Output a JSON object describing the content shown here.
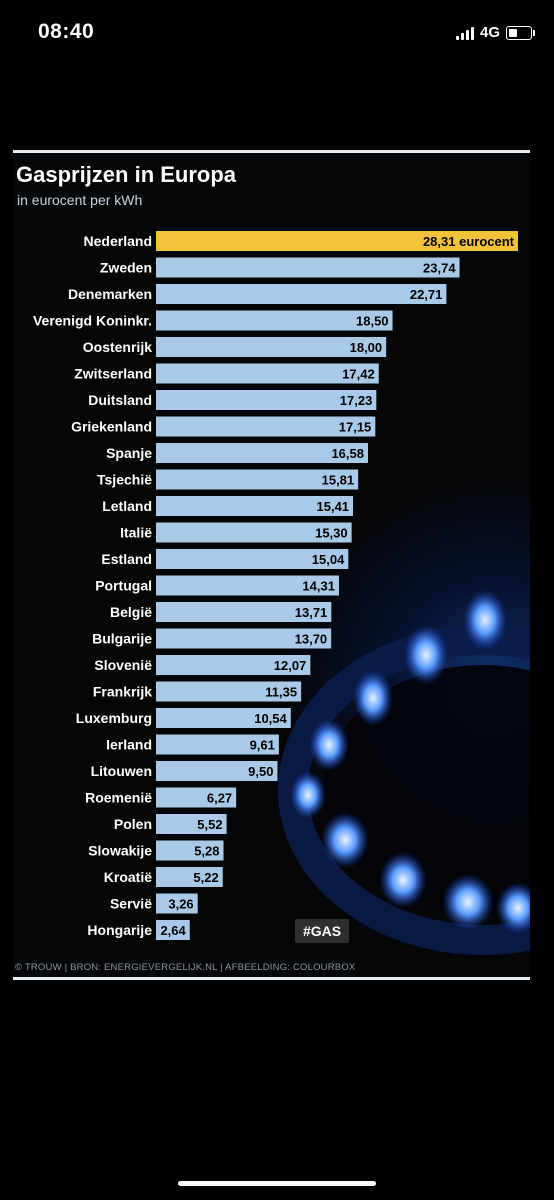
{
  "status_bar": {
    "time": "08:40",
    "network": "4G",
    "battery_level": 0.4
  },
  "infographic": {
    "hashtag": "#GAS",
    "footer": "© TROUW | BRON: ENERGIEVERGELIJK.NL | AFBEELDING: COLOURBOX"
  },
  "colors": {
    "highlight_bar": "#f2c33a",
    "bar": "#a9c9e8",
    "label_text": "#ffffff",
    "value_text": "#000000",
    "background": "#050608"
  },
  "chart_data": {
    "type": "bar",
    "orientation": "horizontal",
    "title": "Gasprijzen in Europa",
    "subtitle": "in eurocent per kWh",
    "xlabel": "",
    "ylabel": "",
    "xlim": [
      0,
      28.31
    ],
    "grid": false,
    "highlight_index": 0,
    "highlight_suffix": " eurocent",
    "categories": [
      "Nederland",
      "Zweden",
      "Denemarken",
      "Verenigd Koninkr.",
      "Oostenrijk",
      "Zwitserland",
      "Duitsland",
      "Griekenland",
      "Spanje",
      "Tsjechië",
      "Letland",
      "Italië",
      "Estland",
      "Portugal",
      "België",
      "Bulgarije",
      "Slovenië",
      "Frankrijk",
      "Luxemburg",
      "Ierland",
      "Litouwen",
      "Roemenië",
      "Polen",
      "Slowakije",
      "Kroatië",
      "Servië",
      "Hongarije"
    ],
    "values": [
      28.31,
      23.74,
      22.71,
      18.5,
      18.0,
      17.42,
      17.23,
      17.15,
      16.58,
      15.81,
      15.41,
      15.3,
      15.04,
      14.31,
      13.71,
      13.7,
      12.07,
      11.35,
      10.54,
      9.61,
      9.5,
      6.27,
      5.52,
      5.28,
      5.22,
      3.26,
      2.64
    ],
    "value_labels": [
      "28,31",
      "23,74",
      "22,71",
      "18,50",
      "18,00",
      "17,42",
      "17,23",
      "17,15",
      "16,58",
      "15,81",
      "15,41",
      "15,30",
      "15,04",
      "14,31",
      "13,71",
      "13,70",
      "12,07",
      "11,35",
      "10,54",
      "9,61",
      "9,50",
      "6,27",
      "5,52",
      "5,28",
      "5,22",
      "3,26",
      "2,64"
    ]
  }
}
